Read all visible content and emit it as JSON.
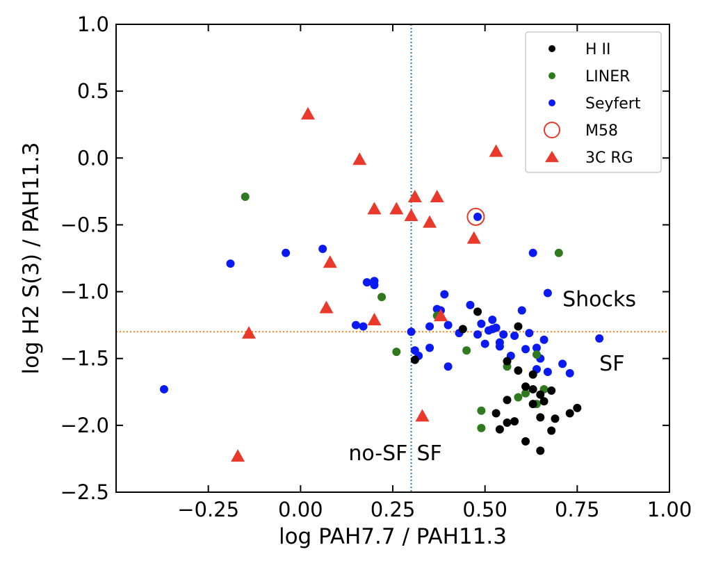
{
  "chart_data": {
    "type": "scatter",
    "title": "",
    "xlabel": "log PAH7.7 / PAH11.3",
    "ylabel": "log H2 S(3) / PAH11.3",
    "xlim": [
      -0.5,
      1.0
    ],
    "ylim": [
      -2.5,
      1.0
    ],
    "xticks": [
      -0.25,
      0.0,
      0.25,
      0.5,
      0.75,
      1.0
    ],
    "xtick_labels": [
      "−0.25",
      "0.00",
      "0.25",
      "0.50",
      "0.75",
      "1.00"
    ],
    "yticks": [
      -2.5,
      -2.0,
      -1.5,
      -1.0,
      -0.5,
      0.0,
      0.5,
      1.0
    ],
    "ytick_labels": [
      "−2.5",
      "−2.0",
      "−1.5",
      "−1.0",
      "−0.5",
      "0.0",
      "0.5",
      "1.0"
    ],
    "grid": false,
    "legend_position": "top-right",
    "reference_lines": [
      {
        "orientation": "vertical",
        "value": 0.3,
        "color": "#1f77b4",
        "style": "dotted"
      },
      {
        "orientation": "horizontal",
        "value": -1.3,
        "color": "#ff7f0e",
        "style": "dotted"
      }
    ],
    "annotations": [
      {
        "text": "Shocks",
        "x": 0.71,
        "y": -1.11
      },
      {
        "text": "SF",
        "x": 0.81,
        "y": -1.59
      },
      {
        "text": "no-SF",
        "x": 0.13,
        "y": -2.26
      },
      {
        "text": "SF",
        "x": 0.315,
        "y": -2.26
      }
    ],
    "series": [
      {
        "name": "H II",
        "marker": "circle",
        "color": "#000000",
        "points": [
          [
            0.31,
            -1.51
          ],
          [
            0.44,
            -1.28
          ],
          [
            0.48,
            -1.15
          ],
          [
            0.59,
            -1.26
          ],
          [
            0.56,
            -1.52
          ],
          [
            0.59,
            -1.59
          ],
          [
            0.63,
            -1.62
          ],
          [
            0.61,
            -1.71
          ],
          [
            0.63,
            -1.73
          ],
          [
            0.65,
            -1.77
          ],
          [
            0.68,
            -1.74
          ],
          [
            0.56,
            -1.81
          ],
          [
            0.63,
            -1.84
          ],
          [
            0.65,
            -1.94
          ],
          [
            0.69,
            -1.95
          ],
          [
            0.73,
            -1.91
          ],
          [
            0.75,
            -1.87
          ],
          [
            0.53,
            -1.91
          ],
          [
            0.56,
            -1.98
          ],
          [
            0.58,
            -1.97
          ],
          [
            0.54,
            -2.03
          ],
          [
            0.61,
            -2.12
          ],
          [
            0.68,
            -2.04
          ],
          [
            0.65,
            -2.19
          ],
          [
            0.66,
            -1.82
          ]
        ]
      },
      {
        "name": "LINER",
        "marker": "circle",
        "color": "#2f7a1f",
        "points": [
          [
            -0.15,
            -0.29
          ],
          [
            0.22,
            -1.04
          ],
          [
            0.26,
            -1.45
          ],
          [
            0.37,
            -1.18
          ],
          [
            0.45,
            -1.44
          ],
          [
            0.56,
            -1.56
          ],
          [
            0.59,
            -1.79
          ],
          [
            0.61,
            -1.76
          ],
          [
            0.64,
            -1.84
          ],
          [
            0.66,
            -1.73
          ],
          [
            0.49,
            -1.89
          ],
          [
            0.49,
            -2.02
          ],
          [
            0.7,
            -0.71
          ],
          [
            0.64,
            -1.47
          ]
        ]
      },
      {
        "name": "Seyfert",
        "marker": "circle",
        "color": "#0a1af0",
        "points": [
          [
            -0.37,
            -1.73
          ],
          [
            -0.19,
            -0.79
          ],
          [
            -0.04,
            -0.71
          ],
          [
            0.06,
            -0.68
          ],
          [
            0.15,
            -1.25
          ],
          [
            0.17,
            -1.26
          ],
          [
            0.18,
            -0.93
          ],
          [
            0.2,
            -0.95
          ],
          [
            0.2,
            -0.92
          ],
          [
            0.3,
            -1.3
          ],
          [
            0.31,
            -1.44
          ],
          [
            0.32,
            -1.48
          ],
          [
            0.35,
            -1.26
          ],
          [
            0.35,
            -1.42
          ],
          [
            0.37,
            -1.13
          ],
          [
            0.38,
            -1.14
          ],
          [
            0.39,
            -1.02
          ],
          [
            0.4,
            -1.25
          ],
          [
            0.4,
            -1.56
          ],
          [
            0.43,
            -1.31
          ],
          [
            0.46,
            -1.1
          ],
          [
            0.48,
            -1.32
          ],
          [
            0.49,
            -1.24
          ],
          [
            0.5,
            -1.39
          ],
          [
            0.51,
            -1.29
          ],
          [
            0.52,
            -1.21
          ],
          [
            0.52,
            -1.28
          ],
          [
            0.53,
            -1.27
          ],
          [
            0.54,
            -1.41
          ],
          [
            0.54,
            -1.38
          ],
          [
            0.55,
            -1.32
          ],
          [
            0.57,
            -1.48
          ],
          [
            0.58,
            -1.33
          ],
          [
            0.6,
            -1.14
          ],
          [
            0.61,
            -1.43
          ],
          [
            0.62,
            -1.31
          ],
          [
            0.63,
            -0.71
          ],
          [
            0.64,
            -1.42
          ],
          [
            0.65,
            -1.5
          ],
          [
            0.64,
            -1.58
          ],
          [
            0.66,
            -1.36
          ],
          [
            0.67,
            -1.01
          ],
          [
            0.67,
            -1.6
          ],
          [
            0.71,
            -1.54
          ],
          [
            0.73,
            -1.61
          ],
          [
            0.81,
            -1.35
          ],
          [
            0.48,
            -0.44
          ]
        ]
      },
      {
        "name": "M58",
        "marker": "open-circle",
        "color": "#e8392b",
        "points": [
          [
            0.475,
            -0.44
          ]
        ]
      },
      {
        "name": "3C RG",
        "marker": "triangle",
        "color": "#e8392b",
        "points": [
          [
            -0.17,
            -2.23
          ],
          [
            -0.14,
            -1.31
          ],
          [
            0.02,
            0.33
          ],
          [
            0.07,
            -1.12
          ],
          [
            0.08,
            -0.78
          ],
          [
            0.16,
            -0.01
          ],
          [
            0.2,
            -0.38
          ],
          [
            0.2,
            -1.21
          ],
          [
            0.26,
            -0.38
          ],
          [
            0.3,
            -0.43
          ],
          [
            0.31,
            -0.29
          ],
          [
            0.33,
            -1.93
          ],
          [
            0.35,
            -0.48
          ],
          [
            0.37,
            -0.29
          ],
          [
            0.38,
            -1.18
          ],
          [
            0.47,
            -0.6
          ],
          [
            0.53,
            0.05
          ]
        ]
      }
    ]
  }
}
